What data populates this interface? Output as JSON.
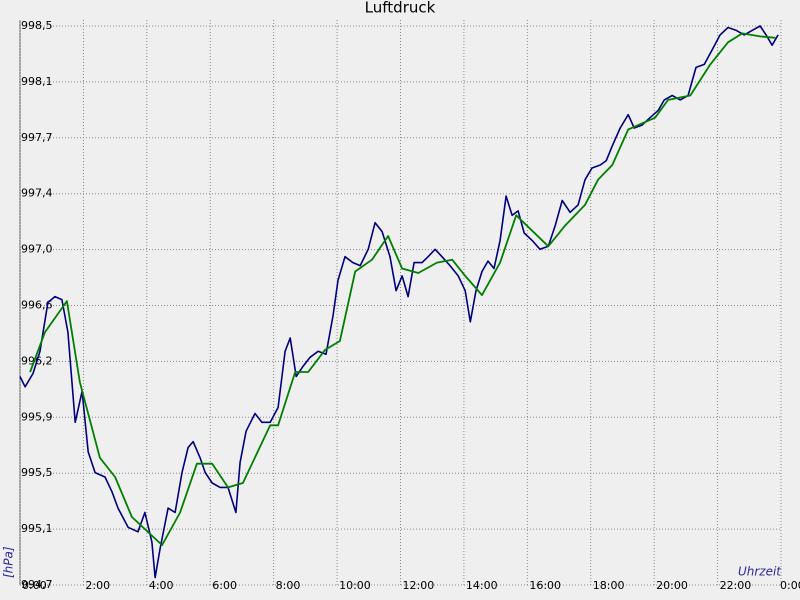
{
  "chart_data": {
    "type": "line",
    "title": "Luftdruck",
    "y_label": "[hPa]",
    "x_label": "Uhrzeit",
    "xlim": [
      0,
      24
    ],
    "xticks": [
      {
        "value": 0,
        "label": "0:00"
      },
      {
        "value": 2,
        "label": "2:00"
      },
      {
        "value": 4,
        "label": "4:00"
      },
      {
        "value": 6,
        "label": "6:00"
      },
      {
        "value": 8,
        "label": "8:00"
      },
      {
        "value": 10,
        "label": "10:00"
      },
      {
        "value": 12,
        "label": "12:00"
      },
      {
        "value": 14,
        "label": "14:00"
      },
      {
        "value": 16,
        "label": "16:00"
      },
      {
        "value": 18,
        "label": "18:00"
      },
      {
        "value": 20,
        "label": "20:00"
      },
      {
        "value": 22,
        "label": "22:00"
      },
      {
        "value": 24,
        "label": "0:00"
      }
    ],
    "ylim": [
      994.72,
      998.5
    ],
    "yticks": [
      {
        "value": 994.72,
        "label": "994,7"
      },
      {
        "value": 995.098,
        "label": "995,1"
      },
      {
        "value": 995.476,
        "label": "995,5"
      },
      {
        "value": 995.854,
        "label": "995,9"
      },
      {
        "value": 996.232,
        "label": "996,2"
      },
      {
        "value": 996.61,
        "label": "996,6"
      },
      {
        "value": 996.988,
        "label": "997,0"
      },
      {
        "value": 997.366,
        "label": "997,4"
      },
      {
        "value": 997.744,
        "label": "997,7"
      },
      {
        "value": 998.122,
        "label": "998,1"
      },
      {
        "value": 998.5,
        "label": "998,5"
      }
    ],
    "grid": true,
    "series": [
      {
        "color": "#000080",
        "x": [
          0,
          0.16,
          0.41,
          0.63,
          0.88,
          1.1,
          1.32,
          1.51,
          1.74,
          1.96,
          2.15,
          2.37,
          2.68,
          2.9,
          3.09,
          3.41,
          3.72,
          3.94,
          4.16,
          4.26,
          4.42,
          4.67,
          4.89,
          5.11,
          5.3,
          5.46,
          5.68,
          5.84,
          6.06,
          6.31,
          6.56,
          6.81,
          6.94,
          7.13,
          7.41,
          7.63,
          7.89,
          8.14,
          8.36,
          8.52,
          8.71,
          8.93,
          9.15,
          9.4,
          9.65,
          9.87,
          10.03,
          10.25,
          10.5,
          10.73,
          10.98,
          11.2,
          11.42,
          11.67,
          11.86,
          12.05,
          12.24,
          12.43,
          12.68,
          12.87,
          13.09,
          13.31,
          13.56,
          13.82,
          14.04,
          14.2,
          14.38,
          14.57,
          14.76,
          14.95,
          15.14,
          15.33,
          15.52,
          15.71,
          15.9,
          16.15,
          16.4,
          16.66,
          16.88,
          17.1,
          17.35,
          17.6,
          17.82,
          18.04,
          18.3,
          18.49,
          18.68,
          18.93,
          19.18,
          19.37,
          19.62,
          19.87,
          20.13,
          20.32,
          20.57,
          20.82,
          21.07,
          21.32,
          21.58,
          21.83,
          22.08,
          22.33,
          22.59,
          22.84,
          23.09,
          23.34,
          23.53,
          23.72,
          23.91
        ],
        "values": [
          996.13,
          996.06,
          996.15,
          996.3,
          996.63,
          996.67,
          996.65,
          996.43,
          995.82,
          996.03,
          995.62,
          995.48,
          995.45,
          995.35,
          995.24,
          995.11,
          995.08,
          995.21,
          995.01,
          994.77,
          994.97,
          995.24,
          995.21,
          995.48,
          995.65,
          995.69,
          995.58,
          995.48,
          995.41,
          995.38,
          995.38,
          995.21,
          995.55,
          995.76,
          995.88,
          995.82,
          995.82,
          995.92,
          996.3,
          996.39,
          996.13,
          996.2,
          996.26,
          996.3,
          996.28,
          996.54,
          996.78,
          996.94,
          996.9,
          996.88,
          996.99,
          997.17,
          997.11,
          996.94,
          996.71,
          996.81,
          996.67,
          996.9,
          996.9,
          996.94,
          996.99,
          996.94,
          996.88,
          996.81,
          996.71,
          996.5,
          996.71,
          996.84,
          996.91,
          996.86,
          997.05,
          997.35,
          997.22,
          997.25,
          997.1,
          997.05,
          996.99,
          997.01,
          997.15,
          997.32,
          997.24,
          997.29,
          997.46,
          997.54,
          997.56,
          997.59,
          997.69,
          997.81,
          997.9,
          997.81,
          997.83,
          997.88,
          997.93,
          998.0,
          998.03,
          998.0,
          998.03,
          998.22,
          998.24,
          998.34,
          998.44,
          998.49,
          998.47,
          998.44,
          998.47,
          998.5,
          998.44,
          998.37,
          998.44
        ]
      },
      {
        "color": "#008000",
        "x": [
          0.32,
          0.79,
          1.48,
          1.89,
          2.52,
          3.0,
          3.53,
          4.48,
          5.05,
          5.58,
          6.06,
          6.56,
          7.03,
          7.89,
          8.14,
          8.68,
          9.09,
          9.62,
          10.09,
          10.57,
          11.1,
          11.61,
          12.05,
          12.56,
          13.15,
          13.63,
          14.04,
          14.57,
          15.14,
          15.65,
          16.66,
          17.19,
          17.82,
          18.23,
          18.68,
          19.18,
          20.03,
          20.44,
          21.14,
          21.77,
          22.33,
          22.78,
          23.34,
          23.82
        ],
        "values": [
          996.16,
          996.43,
          996.64,
          996.09,
          995.58,
          995.45,
          995.18,
          994.99,
          995.21,
          995.54,
          995.54,
          995.38,
          995.41,
          995.8,
          995.8,
          996.16,
          996.16,
          996.31,
          996.37,
          996.84,
          996.92,
          997.08,
          996.86,
          996.83,
          996.9,
          996.92,
          996.81,
          996.68,
          996.9,
          997.22,
          997.01,
          997.15,
          997.29,
          997.46,
          997.56,
          997.8,
          997.88,
          998.0,
          998.03,
          998.24,
          998.39,
          998.45,
          998.43,
          998.42
        ]
      }
    ]
  }
}
